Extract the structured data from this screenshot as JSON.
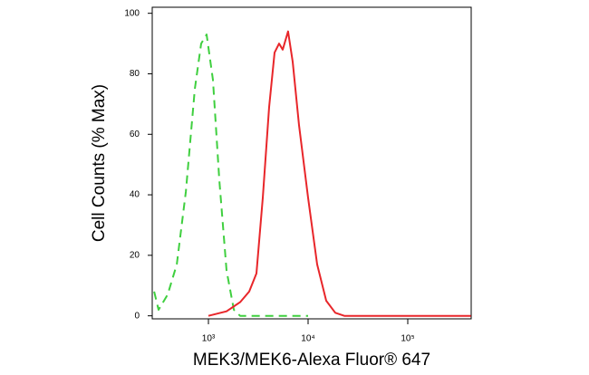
{
  "chart_data": {
    "type": "line",
    "xlabel": "MEK3/MEK6-Alexa Fluor® 647",
    "ylabel": "Cell Counts (% Max)",
    "xscale": "log",
    "xlim": [
      273,
      433000
    ],
    "ylim": [
      -1,
      102
    ],
    "xticks": [
      {
        "value": 1000,
        "label": "10³"
      },
      {
        "value": 10000,
        "label": "10⁴"
      },
      {
        "value": 100000,
        "label": "10⁵"
      }
    ],
    "yticks": [
      0,
      20,
      40,
      60,
      80,
      100
    ],
    "series": [
      {
        "color": "#3fcf3f",
        "dash": true,
        "x": [
          285,
          316,
          390,
          481,
          593,
          731,
          846,
          959,
          1110,
          1285,
          1520,
          1800,
          2080,
          10000
        ],
        "values": [
          8,
          2,
          7,
          17,
          41,
          75,
          90,
          93,
          78,
          45,
          15,
          2,
          0,
          0
        ]
      },
      {
        "color": "#e8262a",
        "dash": false,
        "x": [
          1000,
          1520,
          2080,
          2566,
          3035,
          3510,
          4066,
          4610,
          5115,
          5560,
          6300,
          7010,
          8110,
          10000,
          12330,
          15200,
          18740,
          23100,
          430000
        ],
        "values": [
          0,
          1.5,
          4.5,
          8,
          14,
          39,
          69,
          87,
          90,
          88,
          94,
          84,
          63,
          39,
          17,
          5,
          1,
          0,
          0
        ]
      }
    ]
  }
}
